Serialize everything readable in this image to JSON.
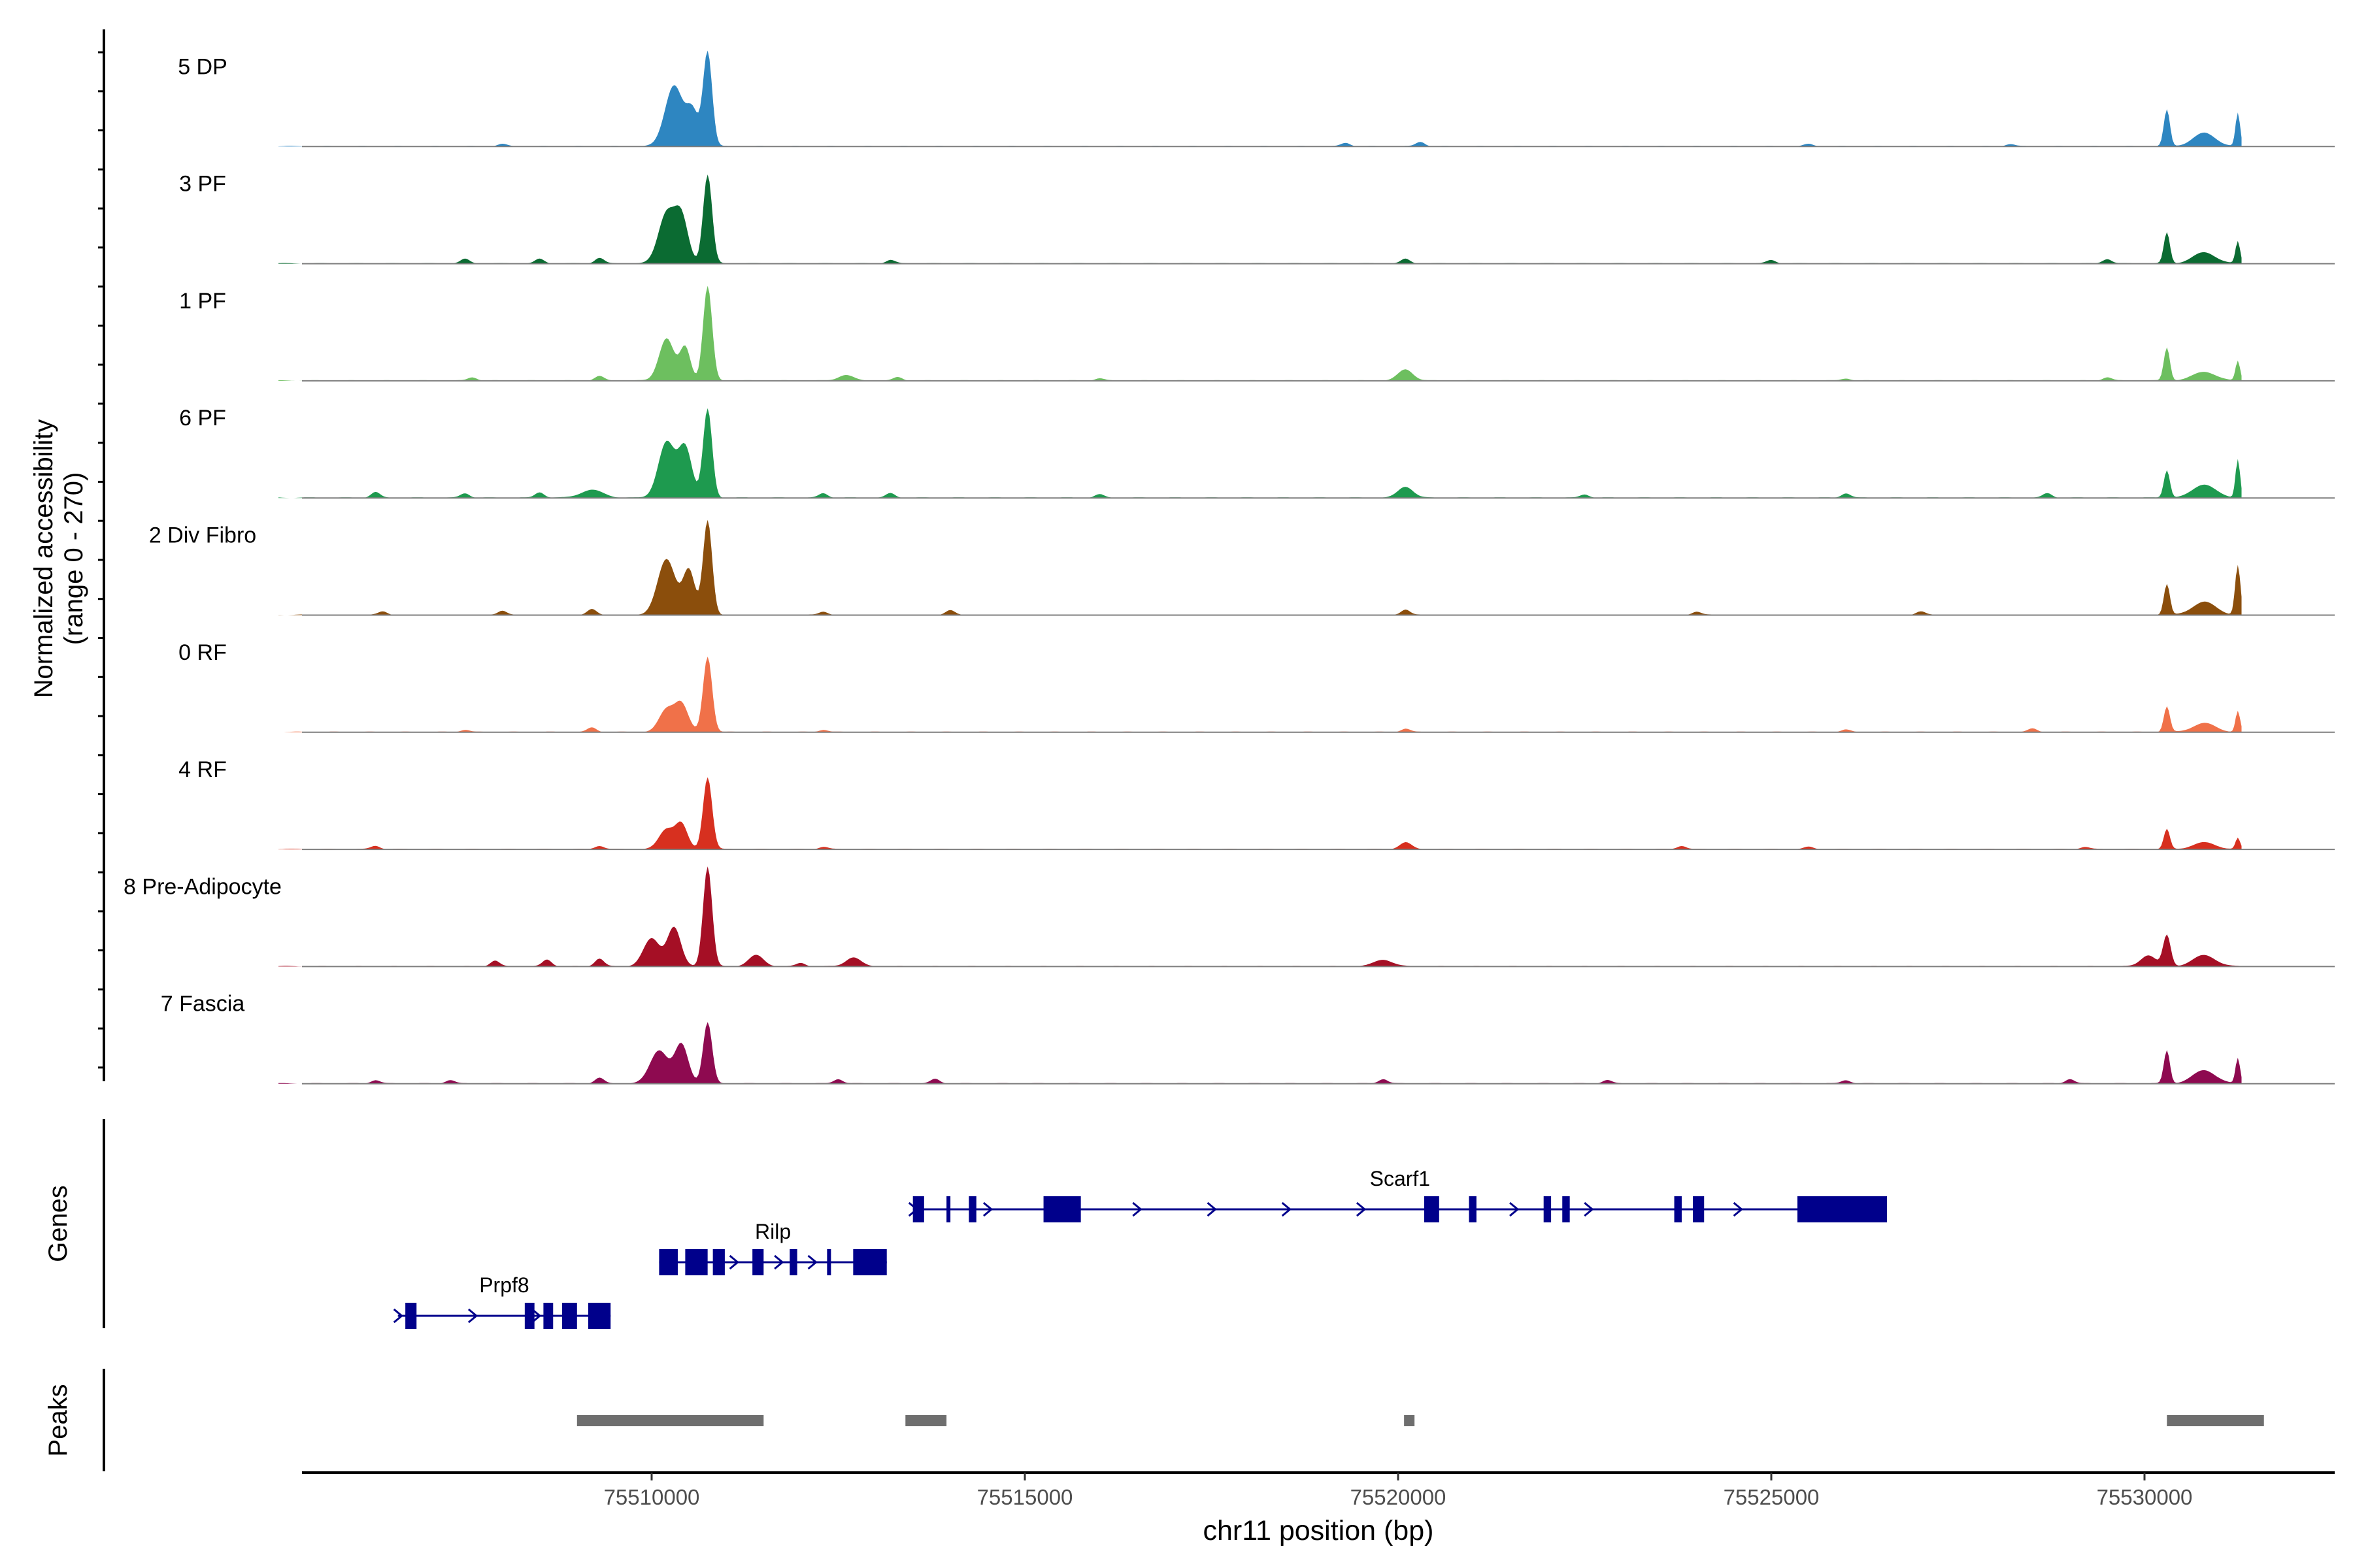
{
  "chart_data": {
    "type": "area",
    "chromosome": "chr11",
    "xlim": [
      75505000,
      75532500
    ],
    "y_range_label": "(range 0 - 270)",
    "ylabel": "Normalized accessibility",
    "xlabel": "chr11 position (bp)",
    "xticks": [
      75510000,
      75515000,
      75520000,
      75525000,
      75530000
    ],
    "xtick_labels": [
      "75510000",
      "75515000",
      "75520000",
      "75525000",
      "75530000"
    ],
    "panel_labels": {
      "genes": "Genes",
      "peaks": "Peaks"
    },
    "coverage_region": [
      75505000,
      75531300
    ],
    "tracks": [
      {
        "name": "5 DP",
        "color": "#2E86C1",
        "peaks": [
          [
            75510300,
            0.55,
            120
          ],
          [
            75510750,
            0.85,
            60
          ],
          [
            75510550,
            0.3,
            80
          ],
          [
            75530300,
            0.33,
            40
          ],
          [
            75531250,
            0.3,
            30
          ],
          [
            75530800,
            0.12,
            150
          ]
        ],
        "noise": [
          [
            75508000,
            0.02
          ],
          [
            75519300,
            0.03
          ],
          [
            75520300,
            0.04
          ],
          [
            75525500,
            0.02
          ],
          [
            75528200,
            0.02
          ]
        ]
      },
      {
        "name": "3 PF",
        "color": "#0B6B32",
        "peaks": [
          [
            75510200,
            0.45,
            110
          ],
          [
            75510400,
            0.4,
            90
          ],
          [
            75510750,
            0.8,
            60
          ],
          [
            75530300,
            0.28,
            40
          ],
          [
            75531250,
            0.2,
            30
          ],
          [
            75530800,
            0.1,
            150
          ]
        ],
        "noise": [
          [
            75507500,
            0.04
          ],
          [
            75508500,
            0.04
          ],
          [
            75509300,
            0.05
          ],
          [
            75513200,
            0.03
          ],
          [
            75520100,
            0.04
          ],
          [
            75525000,
            0.03
          ],
          [
            75529500,
            0.04
          ]
        ]
      },
      {
        "name": "1 PF",
        "color": "#6DBF5F",
        "peaks": [
          [
            75510200,
            0.38,
            100
          ],
          [
            75510450,
            0.3,
            70
          ],
          [
            75510750,
            0.85,
            60
          ],
          [
            75512600,
            0.05,
            100
          ],
          [
            75520100,
            0.1,
            100
          ],
          [
            75530300,
            0.3,
            40
          ],
          [
            75531250,
            0.18,
            30
          ],
          [
            75530800,
            0.08,
            150
          ]
        ],
        "noise": [
          [
            75507600,
            0.03
          ],
          [
            75509300,
            0.04
          ],
          [
            75513300,
            0.03
          ],
          [
            75516000,
            0.02
          ],
          [
            75526000,
            0.02
          ],
          [
            75529500,
            0.03
          ]
        ]
      },
      {
        "name": "6 PF",
        "color": "#1E9A4F",
        "peaks": [
          [
            75510200,
            0.5,
            110
          ],
          [
            75510450,
            0.45,
            90
          ],
          [
            75510750,
            0.8,
            60
          ],
          [
            75509200,
            0.07,
            150
          ],
          [
            75520100,
            0.1,
            100
          ],
          [
            75530300,
            0.25,
            40
          ],
          [
            75531250,
            0.35,
            30
          ],
          [
            75530800,
            0.12,
            150
          ]
        ],
        "noise": [
          [
            75506300,
            0.05
          ],
          [
            75507500,
            0.04
          ],
          [
            75508500,
            0.05
          ],
          [
            75512300,
            0.04
          ],
          [
            75513200,
            0.04
          ],
          [
            75516000,
            0.03
          ],
          [
            75522500,
            0.03
          ],
          [
            75526000,
            0.04
          ],
          [
            75528700,
            0.04
          ]
        ]
      },
      {
        "name": "2 Div Fibro",
        "color": "#8B4E0C",
        "peaks": [
          [
            75510200,
            0.5,
            120
          ],
          [
            75510500,
            0.4,
            80
          ],
          [
            75510750,
            0.85,
            60
          ],
          [
            75530300,
            0.28,
            40
          ],
          [
            75531250,
            0.45,
            35
          ],
          [
            75530800,
            0.12,
            150
          ]
        ],
        "noise": [
          [
            75506400,
            0.03
          ],
          [
            75508000,
            0.04
          ],
          [
            75509200,
            0.05
          ],
          [
            75512300,
            0.03
          ],
          [
            75514000,
            0.04
          ],
          [
            75520100,
            0.05
          ],
          [
            75524000,
            0.03
          ],
          [
            75527000,
            0.03
          ]
        ]
      },
      {
        "name": "0 RF",
        "color": "#F07149",
        "peaks": [
          [
            75510200,
            0.2,
            100
          ],
          [
            75510400,
            0.25,
            90
          ],
          [
            75510750,
            0.68,
            60
          ],
          [
            75530300,
            0.23,
            40
          ],
          [
            75531250,
            0.19,
            30
          ],
          [
            75530800,
            0.08,
            150
          ]
        ],
        "noise": [
          [
            75507500,
            0.02
          ],
          [
            75509200,
            0.04
          ],
          [
            75512300,
            0.02
          ],
          [
            75520100,
            0.03
          ],
          [
            75526000,
            0.02
          ],
          [
            75528500,
            0.03
          ]
        ]
      },
      {
        "name": "4 RF",
        "color": "#D7301F",
        "peaks": [
          [
            75510200,
            0.18,
            100
          ],
          [
            75510400,
            0.22,
            80
          ],
          [
            75510750,
            0.65,
            60
          ],
          [
            75520100,
            0.06,
            80
          ],
          [
            75530300,
            0.18,
            40
          ],
          [
            75531250,
            0.1,
            30
          ],
          [
            75530800,
            0.06,
            150
          ]
        ],
        "noise": [
          [
            75506300,
            0.03
          ],
          [
            75509300,
            0.03
          ],
          [
            75512300,
            0.02
          ],
          [
            75523800,
            0.03
          ],
          [
            75525500,
            0.02
          ],
          [
            75529200,
            0.02
          ]
        ]
      },
      {
        "name": "8 Pre-Adipocyte",
        "color": "#A50F25",
        "peaks": [
          [
            75510000,
            0.25,
            110
          ],
          [
            75510300,
            0.35,
            90
          ],
          [
            75510750,
            0.9,
            60
          ],
          [
            75511400,
            0.1,
            100
          ],
          [
            75512700,
            0.08,
            100
          ],
          [
            75519800,
            0.06,
            120
          ],
          [
            75530300,
            0.28,
            50
          ],
          [
            75530800,
            0.1,
            150
          ],
          [
            75530050,
            0.1,
            100
          ]
        ],
        "noise": [
          [
            75507900,
            0.05
          ],
          [
            75508600,
            0.06
          ],
          [
            75509300,
            0.07
          ],
          [
            75512000,
            0.03
          ]
        ]
      },
      {
        "name": "7 Fascia",
        "color": "#8E0A50",
        "peaks": [
          [
            75510100,
            0.3,
            120
          ],
          [
            75510400,
            0.35,
            90
          ],
          [
            75510750,
            0.55,
            60
          ],
          [
            75530300,
            0.3,
            40
          ],
          [
            75531250,
            0.23,
            30
          ],
          [
            75530800,
            0.12,
            150
          ]
        ],
        "noise": [
          [
            75506300,
            0.03
          ],
          [
            75507300,
            0.03
          ],
          [
            75509300,
            0.05
          ],
          [
            75512500,
            0.04
          ],
          [
            75513800,
            0.04
          ],
          [
            75519800,
            0.04
          ],
          [
            75522800,
            0.03
          ],
          [
            75526000,
            0.03
          ],
          [
            75529000,
            0.04
          ]
        ]
      }
    ],
    "genes": [
      {
        "name": "Prpf8",
        "row": 3,
        "start": 75506600,
        "end": 75509450,
        "exons": [
          [
            75506700,
            75506850
          ],
          [
            75508300,
            75508430
          ],
          [
            75508550,
            75508680
          ],
          [
            75508800,
            75509000
          ],
          [
            75509150,
            75509450
          ]
        ],
        "arrows": [
          75506600,
          75507600,
          75508450
        ]
      },
      {
        "name": "Rilp",
        "row": 2,
        "start": 75510100,
        "end": 75513150,
        "exons": [
          [
            75510100,
            75510350
          ],
          [
            75510450,
            75510750
          ],
          [
            75510820,
            75510980
          ],
          [
            75511350,
            75511500
          ],
          [
            75511850,
            75511950
          ],
          [
            75512350,
            75512400
          ],
          [
            75512700,
            75513150
          ]
        ],
        "arrows": [
          75511100,
          75511700,
          75512150
        ]
      },
      {
        "name": "Scarf1",
        "row": 1,
        "start": 75513500,
        "end": 75526550,
        "exons": [
          [
            75513500,
            75513650
          ],
          [
            75513950,
            75514000
          ],
          [
            75514250,
            75514350
          ],
          [
            75515250,
            75515750
          ],
          [
            75520350,
            75520550
          ],
          [
            75520950,
            75521050
          ],
          [
            75521950,
            75522050
          ],
          [
            75522200,
            75522300
          ],
          [
            75523700,
            75523800
          ],
          [
            75523950,
            75524100
          ],
          [
            75525350,
            75526550
          ]
        ],
        "arrows": [
          75513500,
          75514500,
          75516500,
          75517500,
          75518500,
          75519500,
          75521550,
          75522550,
          75524550
        ]
      }
    ],
    "peaks": [
      [
        75509000,
        75511500
      ],
      [
        75513400,
        75513950
      ],
      [
        75520080,
        75520220
      ],
      [
        75530300,
        75531600
      ]
    ]
  }
}
